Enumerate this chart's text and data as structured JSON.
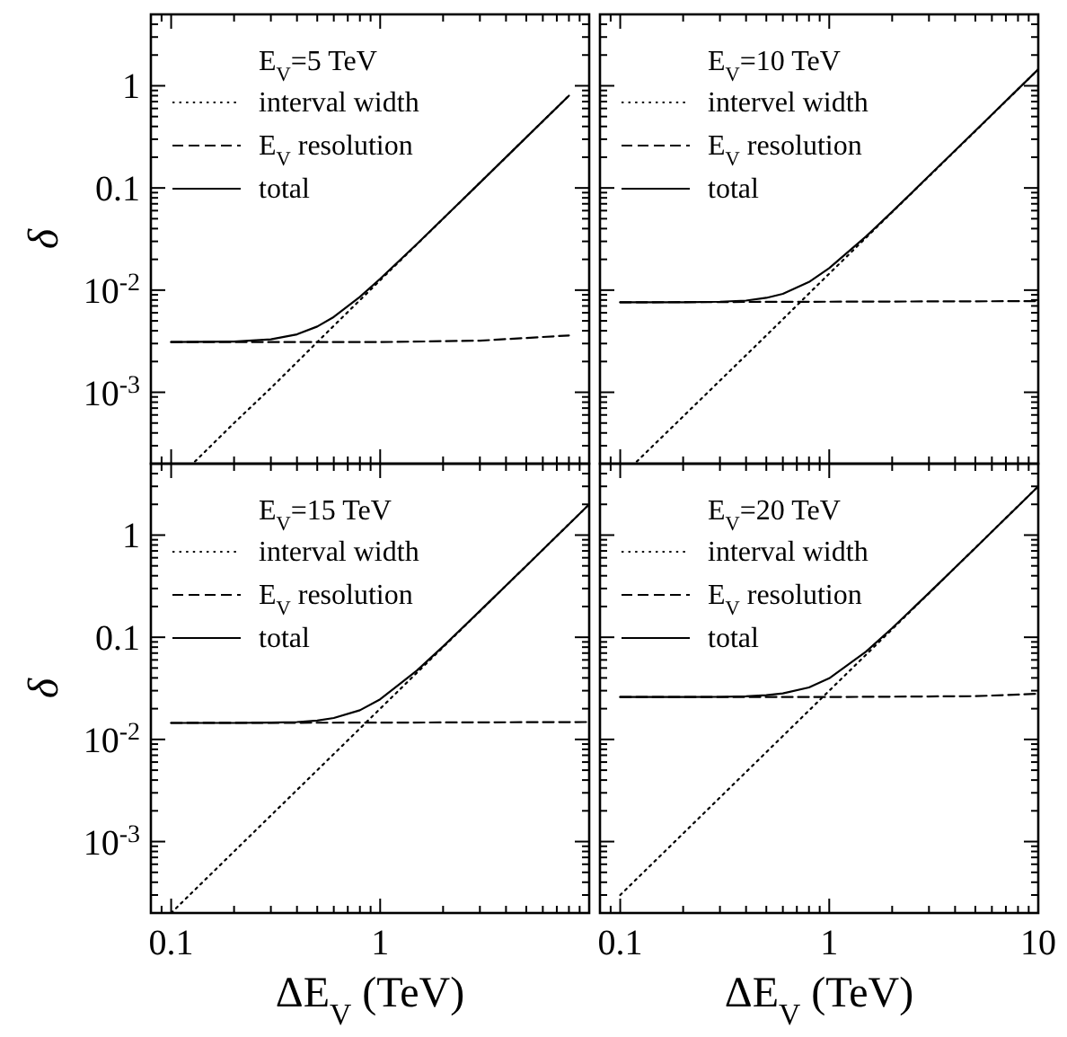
{
  "chart_data": [
    {
      "type": "line",
      "legend_title": "E$_{V}$=5 TeV",
      "ylabel": "δ",
      "log": "xy",
      "xlim": [
        0.08,
        10
      ],
      "ylim": [
        0.0002,
        5
      ],
      "tick_labels": "y",
      "legend": "top left",
      "grid": false,
      "xticks": [
        {
          "value": 0.08,
          "label": null
        },
        {
          "value": 0.09,
          "label": null
        },
        {
          "value": 0.1,
          "label": null
        },
        {
          "value": 0.2,
          "label": null
        },
        {
          "value": 0.3,
          "label": null
        },
        {
          "value": 0.4,
          "label": null
        },
        {
          "value": 0.5,
          "label": null
        },
        {
          "value": 0.6,
          "label": null
        },
        {
          "value": 0.7,
          "label": null
        },
        {
          "value": 0.8,
          "label": null
        },
        {
          "value": 0.9,
          "label": null
        },
        {
          "value": 1,
          "label": null
        },
        {
          "value": 2,
          "label": null
        },
        {
          "value": 3,
          "label": null
        },
        {
          "value": 4,
          "label": null
        },
        {
          "value": 5,
          "label": null
        },
        {
          "value": 6,
          "label": null
        },
        {
          "value": 7,
          "label": null
        },
        {
          "value": 8,
          "label": null
        },
        {
          "value": 9,
          "label": null
        },
        {
          "value": 10,
          "label": null
        }
      ],
      "yticks": [
        {
          "value": 0.0002,
          "label": null
        },
        {
          "value": 0.0003,
          "label": null
        },
        {
          "value": 0.0004,
          "label": null
        },
        {
          "value": 0.0005,
          "label": null
        },
        {
          "value": 0.0006,
          "label": null
        },
        {
          "value": 0.0007,
          "label": null
        },
        {
          "value": 0.0008,
          "label": null
        },
        {
          "value": 0.0009,
          "label": null
        },
        {
          "value": 0.001,
          "label": "10$^{-3}$"
        },
        {
          "value": 0.002,
          "label": null
        },
        {
          "value": 0.003,
          "label": null
        },
        {
          "value": 0.004,
          "label": null
        },
        {
          "value": 0.005,
          "label": null
        },
        {
          "value": 0.006,
          "label": null
        },
        {
          "value": 0.007,
          "label": null
        },
        {
          "value": 0.008,
          "label": null
        },
        {
          "value": 0.009,
          "label": null
        },
        {
          "value": 0.01,
          "label": "10$^{-2}$"
        },
        {
          "value": 0.02,
          "label": null
        },
        {
          "value": 0.03,
          "label": null
        },
        {
          "value": 0.04,
          "label": null
        },
        {
          "value": 0.05,
          "label": null
        },
        {
          "value": 0.06,
          "label": null
        },
        {
          "value": 0.07,
          "label": null
        },
        {
          "value": 0.08,
          "label": null
        },
        {
          "value": 0.09,
          "label": null
        },
        {
          "value": 0.1,
          "label": "0.1"
        },
        {
          "value": 0.2,
          "label": null
        },
        {
          "value": 0.3,
          "label": null
        },
        {
          "value": 0.4,
          "label": null
        },
        {
          "value": 0.5,
          "label": null
        },
        {
          "value": 0.6,
          "label": null
        },
        {
          "value": 0.7,
          "label": null
        },
        {
          "value": 0.8,
          "label": null
        },
        {
          "value": 0.9,
          "label": null
        },
        {
          "value": 1,
          "label": "1"
        },
        {
          "value": 2,
          "label": null
        },
        {
          "value": 3,
          "label": null
        },
        {
          "value": 4,
          "label": null
        },
        {
          "value": 5,
          "label": null
        }
      ],
      "series": [
        {
          "name": "interval width",
          "color": "#000000",
          "line_style": "dotted",
          "x": [
            0.13,
            0.2,
            0.3,
            0.5,
            1,
            2,
            4,
            8
          ],
          "values": [
            0.00021,
            0.0005,
            0.0011,
            0.0031,
            0.0125,
            0.05,
            0.2,
            0.8
          ]
        },
        {
          "name": "E$_{V}$ resolution",
          "color": "#000000",
          "line_style": "dashed",
          "x": [
            0.1,
            1,
            3,
            5,
            8
          ],
          "values": [
            0.0031,
            0.0031,
            0.0032,
            0.0034,
            0.0036
          ]
        },
        {
          "name": "total",
          "color": "#000000",
          "line_style": "solid",
          "x": [
            0.1,
            0.2,
            0.3,
            0.4,
            0.5,
            0.6,
            0.8,
            1,
            1.5,
            2,
            3,
            5,
            8
          ],
          "values": [
            0.0031,
            0.00314,
            0.0033,
            0.00369,
            0.0044,
            0.00546,
            0.00858,
            0.0129,
            0.0283,
            0.0501,
            0.1125,
            0.3125,
            0.8
          ]
        }
      ]
    },
    {
      "type": "line",
      "legend_title": "E$_{V}$=10 TeV",
      "log": "xy",
      "xlim": [
        0.08,
        10
      ],
      "ylim": [
        0.0002,
        5
      ],
      "tick_labels": false,
      "legend": "top left",
      "grid": false,
      "xticks": [
        {
          "value": 0.08,
          "label": null
        },
        {
          "value": 0.09,
          "label": null
        },
        {
          "value": 0.1,
          "label": null
        },
        {
          "value": 0.2,
          "label": null
        },
        {
          "value": 0.3,
          "label": null
        },
        {
          "value": 0.4,
          "label": null
        },
        {
          "value": 0.5,
          "label": null
        },
        {
          "value": 0.6,
          "label": null
        },
        {
          "value": 0.7,
          "label": null
        },
        {
          "value": 0.8,
          "label": null
        },
        {
          "value": 0.9,
          "label": null
        },
        {
          "value": 1,
          "label": null
        },
        {
          "value": 2,
          "label": null
        },
        {
          "value": 3,
          "label": null
        },
        {
          "value": 4,
          "label": null
        },
        {
          "value": 5,
          "label": null
        },
        {
          "value": 6,
          "label": null
        },
        {
          "value": 7,
          "label": null
        },
        {
          "value": 8,
          "label": null
        },
        {
          "value": 9,
          "label": null
        },
        {
          "value": 10,
          "label": null
        }
      ],
      "yticks": [
        {
          "value": 0.0002,
          "label": null
        },
        {
          "value": 0.0003,
          "label": null
        },
        {
          "value": 0.0004,
          "label": null
        },
        {
          "value": 0.0005,
          "label": null
        },
        {
          "value": 0.0006,
          "label": null
        },
        {
          "value": 0.0007,
          "label": null
        },
        {
          "value": 0.0008,
          "label": null
        },
        {
          "value": 0.0009,
          "label": null
        },
        {
          "value": 0.001,
          "label": null
        },
        {
          "value": 0.002,
          "label": null
        },
        {
          "value": 0.003,
          "label": null
        },
        {
          "value": 0.004,
          "label": null
        },
        {
          "value": 0.005,
          "label": null
        },
        {
          "value": 0.006,
          "label": null
        },
        {
          "value": 0.007,
          "label": null
        },
        {
          "value": 0.008,
          "label": null
        },
        {
          "value": 0.009,
          "label": null
        },
        {
          "value": 0.01,
          "label": null
        },
        {
          "value": 0.02,
          "label": null
        },
        {
          "value": 0.03,
          "label": null
        },
        {
          "value": 0.04,
          "label": null
        },
        {
          "value": 0.05,
          "label": null
        },
        {
          "value": 0.06,
          "label": null
        },
        {
          "value": 0.07,
          "label": null
        },
        {
          "value": 0.08,
          "label": null
        },
        {
          "value": 0.09,
          "label": null
        },
        {
          "value": 0.1,
          "label": null
        },
        {
          "value": 0.2,
          "label": null
        },
        {
          "value": 0.3,
          "label": null
        },
        {
          "value": 0.4,
          "label": null
        },
        {
          "value": 0.5,
          "label": null
        },
        {
          "value": 0.6,
          "label": null
        },
        {
          "value": 0.7,
          "label": null
        },
        {
          "value": 0.8,
          "label": null
        },
        {
          "value": 0.9,
          "label": null
        },
        {
          "value": 1,
          "label": null
        },
        {
          "value": 2,
          "label": null
        },
        {
          "value": 3,
          "label": null
        },
        {
          "value": 4,
          "label": null
        },
        {
          "value": 5,
          "label": null
        }
      ],
      "series": [
        {
          "name": "intervel width",
          "color": "#000000",
          "line_style": "dotted",
          "x": [
            0.12,
            0.2,
            0.5,
            1,
            2,
            5,
            10
          ],
          "values": [
            0.00021,
            0.00058,
            0.0036,
            0.0145,
            0.058,
            0.36,
            1.45
          ]
        },
        {
          "name": "E$_{V}$ resolution",
          "color": "#000000",
          "line_style": "dashed",
          "x": [
            0.1,
            1,
            10
          ],
          "values": [
            0.0076,
            0.0077,
            0.0078
          ]
        },
        {
          "name": "total",
          "color": "#000000",
          "line_style": "solid",
          "x": [
            0.1,
            0.2,
            0.3,
            0.4,
            0.5,
            0.6,
            0.8,
            1,
            1.5,
            2,
            3,
            5,
            10
          ],
          "values": [
            0.0076,
            0.0076,
            0.0077,
            0.0079,
            0.0084,
            0.0092,
            0.012,
            0.0164,
            0.0335,
            0.0585,
            0.131,
            0.363,
            1.45
          ]
        }
      ]
    },
    {
      "type": "line",
      "legend_title": "E$_{V}$=15 TeV",
      "ylabel": "δ",
      "xlabel": "ΔE$_{V}$ (TeV)",
      "log": "xy",
      "xlim": [
        0.08,
        10
      ],
      "ylim": [
        0.0002,
        5
      ],
      "legend": "top left",
      "grid": false,
      "xticks": [
        {
          "value": 0.08,
          "label": null
        },
        {
          "value": 0.09,
          "label": null
        },
        0.1,
        {
          "value": 0.2,
          "label": null
        },
        {
          "value": 0.3,
          "label": null
        },
        {
          "value": 0.4,
          "label": null
        },
        {
          "value": 0.5,
          "label": null
        },
        {
          "value": 0.6,
          "label": null
        },
        {
          "value": 0.7,
          "label": null
        },
        {
          "value": 0.8,
          "label": null
        },
        {
          "value": 0.9,
          "label": null
        },
        1,
        {
          "value": 2,
          "label": null
        },
        {
          "value": 3,
          "label": null
        },
        {
          "value": 4,
          "label": null
        },
        {
          "value": 5,
          "label": null
        },
        {
          "value": 6,
          "label": null
        },
        {
          "value": 7,
          "label": null
        },
        {
          "value": 8,
          "label": null
        },
        {
          "value": 9,
          "label": null
        },
        {
          "value": 10,
          "label": null
        }
      ],
      "yticks": [
        {
          "value": 0.0002,
          "label": null
        },
        {
          "value": 0.0003,
          "label": null
        },
        {
          "value": 0.0004,
          "label": null
        },
        {
          "value": 0.0005,
          "label": null
        },
        {
          "value": 0.0006,
          "label": null
        },
        {
          "value": 0.0007,
          "label": null
        },
        {
          "value": 0.0008,
          "label": null
        },
        {
          "value": 0.0009,
          "label": null
        },
        {
          "value": 0.001,
          "label": "10$^{-3}$"
        },
        {
          "value": 0.002,
          "label": null
        },
        {
          "value": 0.003,
          "label": null
        },
        {
          "value": 0.004,
          "label": null
        },
        {
          "value": 0.005,
          "label": null
        },
        {
          "value": 0.006,
          "label": null
        },
        {
          "value": 0.007,
          "label": null
        },
        {
          "value": 0.008,
          "label": null
        },
        {
          "value": 0.009,
          "label": null
        },
        {
          "value": 0.01,
          "label": "10$^{-2}$"
        },
        {
          "value": 0.02,
          "label": null
        },
        {
          "value": 0.03,
          "label": null
        },
        {
          "value": 0.04,
          "label": null
        },
        {
          "value": 0.05,
          "label": null
        },
        {
          "value": 0.06,
          "label": null
        },
        {
          "value": 0.07,
          "label": null
        },
        {
          "value": 0.08,
          "label": null
        },
        {
          "value": 0.09,
          "label": null
        },
        {
          "value": 0.1,
          "label": "0.1"
        },
        {
          "value": 0.2,
          "label": null
        },
        {
          "value": 0.3,
          "label": null
        },
        {
          "value": 0.4,
          "label": null
        },
        {
          "value": 0.5,
          "label": null
        },
        {
          "value": 0.6,
          "label": null
        },
        {
          "value": 0.7,
          "label": null
        },
        {
          "value": 0.8,
          "label": null
        },
        {
          "value": 0.9,
          "label": null
        },
        {
          "value": 1,
          "label": "1"
        },
        {
          "value": 2,
          "label": null
        },
        {
          "value": 3,
          "label": null
        },
        {
          "value": 4,
          "label": null
        },
        {
          "value": 5,
          "label": null
        }
      ],
      "series": [
        {
          "name": "interval width",
          "color": "#000000",
          "line_style": "dotted",
          "x": [
            0.1,
            0.2,
            0.5,
            1,
            2,
            5,
            10
          ],
          "values": [
            0.0002,
            0.0008,
            0.005,
            0.02,
            0.08,
            0.5,
            2
          ]
        },
        {
          "name": "E$_{V}$ resolution",
          "color": "#000000",
          "line_style": "dashed",
          "x": [
            0.1,
            1,
            10
          ],
          "values": [
            0.0145,
            0.0146,
            0.0148
          ]
        },
        {
          "name": "total",
          "color": "#000000",
          "line_style": "solid",
          "x": [
            0.1,
            0.2,
            0.3,
            0.4,
            0.5,
            0.6,
            0.8,
            1,
            1.5,
            2,
            3,
            5,
            10
          ],
          "values": [
            0.0145,
            0.0145,
            0.0146,
            0.0148,
            0.0153,
            0.0162,
            0.0193,
            0.0247,
            0.0473,
            0.0813,
            0.181,
            0.5,
            2
          ]
        }
      ]
    },
    {
      "type": "line",
      "legend_title": "E$_{V}$=20 TeV",
      "xlabel": "ΔE$_{V}$ (TeV)",
      "log": "xy",
      "xlim": [
        0.08,
        10
      ],
      "ylim": [
        0.0002,
        5
      ],
      "tick_labels": "x",
      "legend": "top left",
      "grid": false,
      "xticks": [
        {
          "value": 0.08,
          "label": null
        },
        {
          "value": 0.09,
          "label": null
        },
        0.1,
        {
          "value": 0.2,
          "label": null
        },
        {
          "value": 0.3,
          "label": null
        },
        {
          "value": 0.4,
          "label": null
        },
        {
          "value": 0.5,
          "label": null
        },
        {
          "value": 0.6,
          "label": null
        },
        {
          "value": 0.7,
          "label": null
        },
        {
          "value": 0.8,
          "label": null
        },
        {
          "value": 0.9,
          "label": null
        },
        1,
        {
          "value": 2,
          "label": null
        },
        {
          "value": 3,
          "label": null
        },
        {
          "value": 4,
          "label": null
        },
        {
          "value": 5,
          "label": null
        },
        {
          "value": 6,
          "label": null
        },
        {
          "value": 7,
          "label": null
        },
        {
          "value": 8,
          "label": null
        },
        {
          "value": 9,
          "label": null
        },
        10
      ],
      "yticks": [
        {
          "value": 0.0002,
          "label": null
        },
        {
          "value": 0.0003,
          "label": null
        },
        {
          "value": 0.0004,
          "label": null
        },
        {
          "value": 0.0005,
          "label": null
        },
        {
          "value": 0.0006,
          "label": null
        },
        {
          "value": 0.0007,
          "label": null
        },
        {
          "value": 0.0008,
          "label": null
        },
        {
          "value": 0.0009,
          "label": null
        },
        {
          "value": 0.001,
          "label": null
        },
        {
          "value": 0.002,
          "label": null
        },
        {
          "value": 0.003,
          "label": null
        },
        {
          "value": 0.004,
          "label": null
        },
        {
          "value": 0.005,
          "label": null
        },
        {
          "value": 0.006,
          "label": null
        },
        {
          "value": 0.007,
          "label": null
        },
        {
          "value": 0.008,
          "label": null
        },
        {
          "value": 0.009,
          "label": null
        },
        {
          "value": 0.01,
          "label": null
        },
        {
          "value": 0.02,
          "label": null
        },
        {
          "value": 0.03,
          "label": null
        },
        {
          "value": 0.04,
          "label": null
        },
        {
          "value": 0.05,
          "label": null
        },
        {
          "value": 0.06,
          "label": null
        },
        {
          "value": 0.07,
          "label": null
        },
        {
          "value": 0.08,
          "label": null
        },
        {
          "value": 0.09,
          "label": null
        },
        {
          "value": 0.1,
          "label": null
        },
        {
          "value": 0.2,
          "label": null
        },
        {
          "value": 0.3,
          "label": null
        },
        {
          "value": 0.4,
          "label": null
        },
        {
          "value": 0.5,
          "label": null
        },
        {
          "value": 0.6,
          "label": null
        },
        {
          "value": 0.7,
          "label": null
        },
        {
          "value": 0.8,
          "label": null
        },
        {
          "value": 0.9,
          "label": null
        },
        {
          "value": 1,
          "label": null
        },
        {
          "value": 2,
          "label": null
        },
        {
          "value": 3,
          "label": null
        },
        {
          "value": 4,
          "label": null
        },
        {
          "value": 5,
          "label": null
        }
      ],
      "series": [
        {
          "name": "interval width",
          "color": "#000000",
          "line_style": "dotted",
          "x": [
            0.1,
            0.2,
            0.5,
            1,
            2,
            5,
            10
          ],
          "values": [
            0.0003,
            0.0012,
            0.0075,
            0.03,
            0.12,
            0.75,
            3
          ]
        },
        {
          "name": "E$_{V}$ resolution",
          "color": "#000000",
          "line_style": "dashed",
          "x": [
            0.1,
            1,
            5,
            10
          ],
          "values": [
            0.026,
            0.026,
            0.0265,
            0.028
          ]
        },
        {
          "name": "total",
          "color": "#000000",
          "line_style": "solid",
          "x": [
            0.1,
            0.2,
            0.3,
            0.4,
            0.5,
            0.6,
            0.8,
            1,
            1.5,
            2,
            3,
            5,
            10
          ],
          "values": [
            0.026,
            0.026,
            0.0261,
            0.0264,
            0.0271,
            0.0282,
            0.0323,
            0.0397,
            0.0723,
            0.1228,
            0.2712,
            0.75,
            3
          ]
        }
      ]
    }
  ]
}
